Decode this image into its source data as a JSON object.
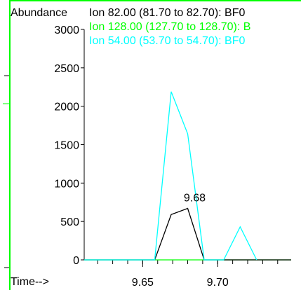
{
  "chart_data": {
    "type": "line",
    "ylabel": "Abundance",
    "xlabel": "Time-->",
    "xlim": [
      9.611,
      9.749
    ],
    "ylim": [
      0,
      3000
    ],
    "x_ticks": [
      9.65,
      9.7
    ],
    "x_tick_labels": [
      "9.65",
      "9.70"
    ],
    "y_ticks": [
      0,
      500,
      1000,
      1500,
      2000,
      2500,
      3000
    ],
    "y_tick_labels": [
      "0",
      "500",
      "1000",
      "1500",
      "2000",
      "2500",
      "3000"
    ],
    "grid": false,
    "legend_position": "top",
    "series": [
      {
        "name": "Ion  82.00 (81.70 to 82.70): BF0",
        "color": "#000000",
        "x": [
          9.611,
          9.658,
          9.669,
          9.68,
          9.691,
          9.749
        ],
        "y": [
          0,
          0,
          590,
          670,
          0,
          0
        ]
      },
      {
        "name": "Ion 128.00 (127.70 to 128.70): B",
        "color": "#00ff00",
        "x": [
          9.611,
          9.749
        ],
        "y": [
          0,
          0
        ]
      },
      {
        "name": "Ion  54.00 (53.70 to 54.70): BF0",
        "color": "#00ffff",
        "x": [
          9.611,
          9.658,
          9.669,
          9.68,
          9.691,
          9.704,
          9.715,
          9.726
        ],
        "y": [
          0,
          0,
          2190,
          1640,
          0,
          0,
          430,
          0
        ]
      }
    ],
    "annotations": [
      {
        "text": "9.68",
        "x": 9.68,
        "y": 670
      }
    ]
  }
}
